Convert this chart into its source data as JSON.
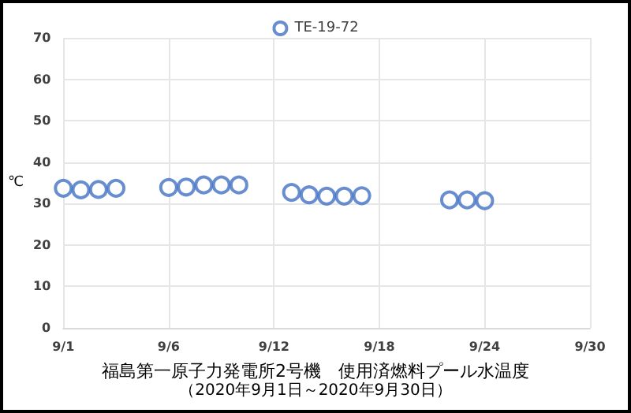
{
  "chart_data": {
    "type": "scatter",
    "title": "福島第一原子力発電所2号機　使用済燃料プール水温度",
    "subtitle": "（2020年9月1日～2020年9月30日）",
    "ylabel": "℃",
    "x": [
      "2020-09-01",
      "2020-09-02",
      "2020-09-03",
      "2020-09-04",
      "2020-09-07",
      "2020-09-08",
      "2020-09-09",
      "2020-09-10",
      "2020-09-11",
      "2020-09-14",
      "2020-09-15",
      "2020-09-16",
      "2020-09-17",
      "2020-09-18",
      "2020-09-23",
      "2020-09-24",
      "2020-09-25"
    ],
    "series": [
      {
        "name": "TE-19-72",
        "color": "#4472c4",
        "values": [
          33.7,
          33.3,
          33.4,
          33.7,
          33.9,
          34.0,
          34.5,
          34.5,
          34.5,
          32.7,
          32.1,
          31.8,
          31.8,
          31.9,
          30.9,
          30.9,
          30.7
        ]
      }
    ],
    "xlim": [
      "2020-09-01",
      "2020-10-01"
    ],
    "xticks": [
      {
        "value": "2020-09-01",
        "label": "9/1"
      },
      {
        "value": "2020-09-07",
        "label": "9/6"
      },
      {
        "value": "2020-09-13",
        "label": "9/12"
      },
      {
        "value": "2020-09-19",
        "label": "9/18"
      },
      {
        "value": "2020-09-25",
        "label": "9/24"
      },
      {
        "value": "2020-10-01",
        "label": "9/30"
      }
    ],
    "ylim": [
      0,
      70
    ],
    "yticks": [
      0,
      10,
      20,
      30,
      40,
      50,
      60,
      70
    ],
    "grid": true,
    "legend": "top",
    "marker": "circle"
  }
}
